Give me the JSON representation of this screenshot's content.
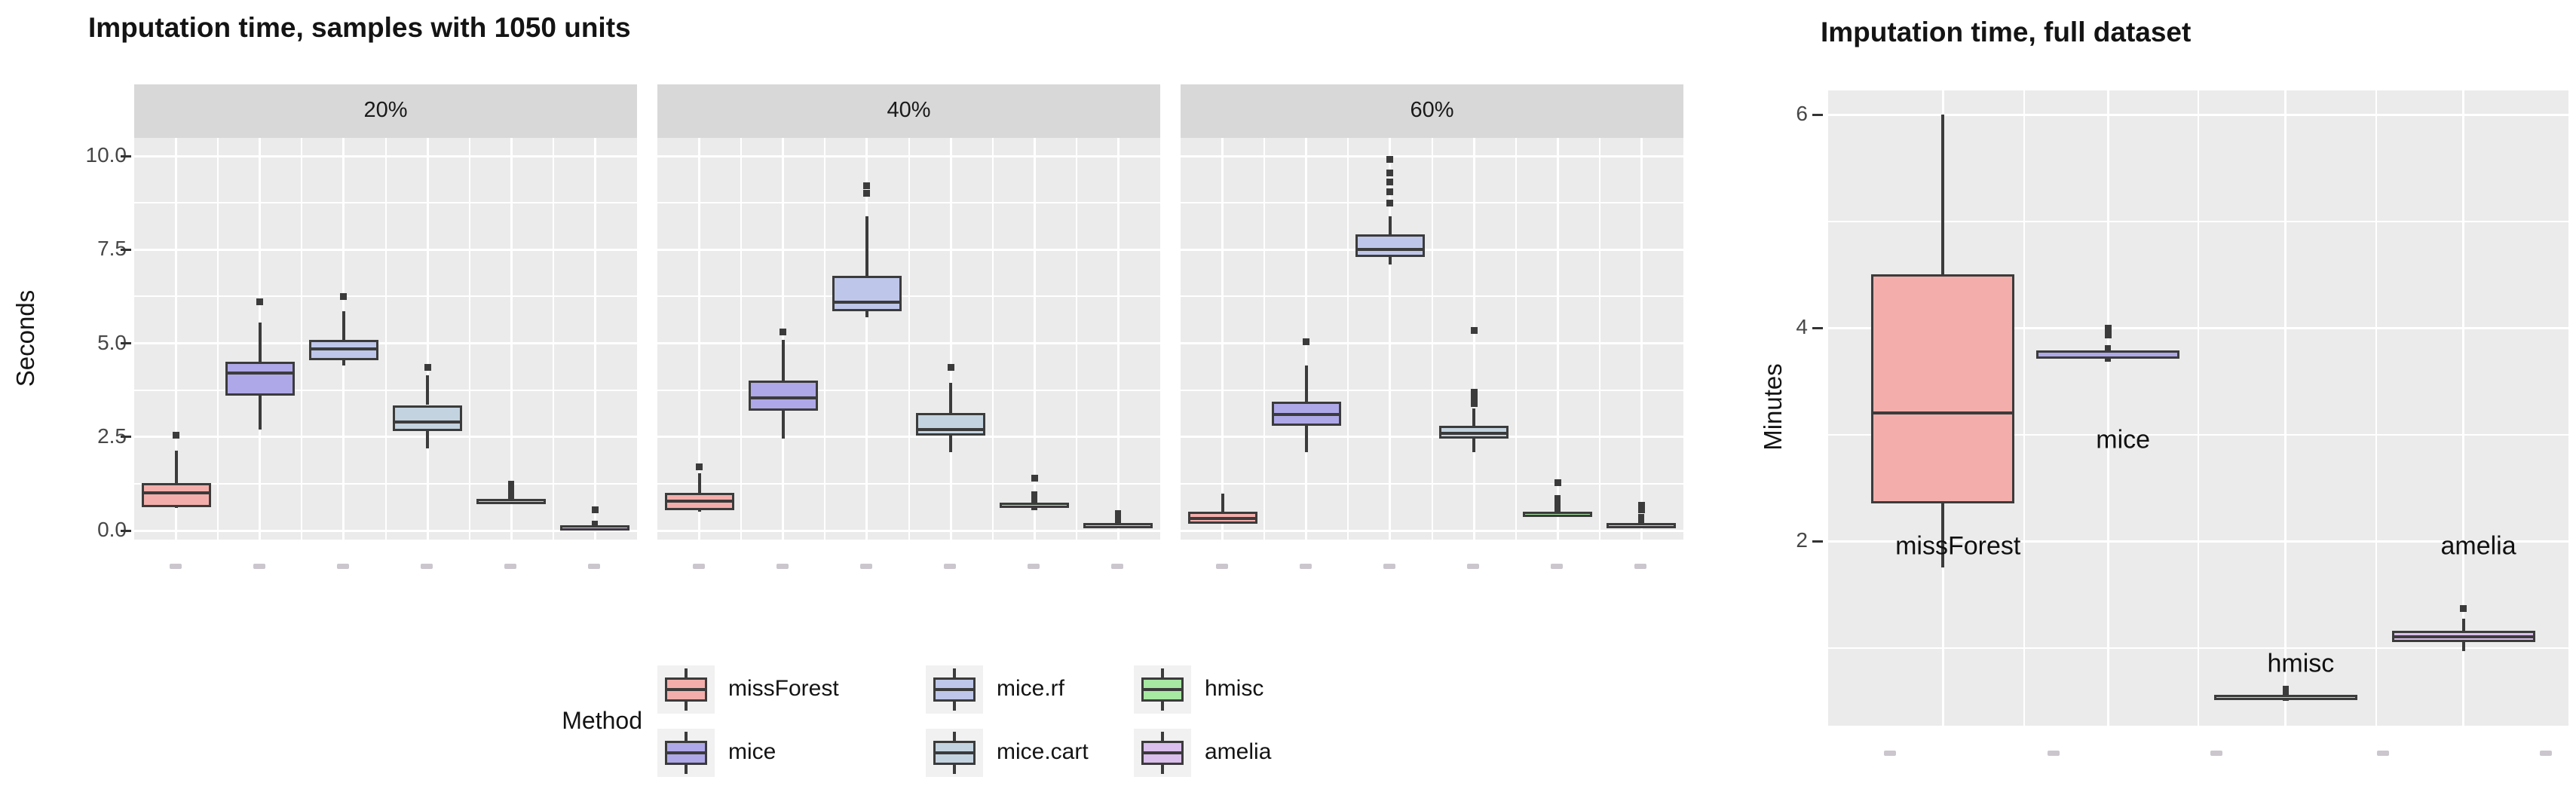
{
  "left_chart": {
    "title": "Imputation time, samples with 1050 units",
    "y_axis": {
      "label": "Seconds",
      "ticks": [
        "10.0",
        "7.5",
        "5.0",
        "2.5",
        "0.0"
      ],
      "tick_values": [
        10,
        7.5,
        5,
        2.5,
        0
      ]
    },
    "facet_labels": [
      "20%",
      "40%",
      "60%"
    ],
    "x_tick_labels_illegible": true
  },
  "right_chart": {
    "title": "Imputation time, full dataset",
    "y_axis": {
      "label": "Minutes",
      "ticks": [
        "6",
        "4",
        "2"
      ],
      "tick_values": [
        6,
        4,
        2
      ]
    },
    "x_tick_labels_illegible": true
  },
  "legend": {
    "title": "Method",
    "columns": [
      [
        {
          "label": "missForest",
          "color": "#F3AEAB"
        },
        {
          "label": "mice",
          "color": "#AEA8E8"
        }
      ],
      [
        {
          "label": "mice.rf",
          "color": "#BEC7E9"
        },
        {
          "label": "mice.cart",
          "color": "#C4D3E0"
        }
      ],
      [
        {
          "label": "hmisc",
          "color": "#A7E8A2"
        },
        {
          "label": "amelia",
          "color": "#DABEEC"
        }
      ]
    ]
  },
  "colors": {
    "missForest": "#F3AEAB",
    "mice": "#AEA8E8",
    "mice_rf": "#BEC7E9",
    "mice_cart": "#C4D3E0",
    "hmisc": "#A7E8A2",
    "amelia": "#DABEEC",
    "box_border": "#3B3B3B",
    "panel_background": "#EBEBEB",
    "strip_background": "#D8D8D8",
    "gridline": "#FFFFFF",
    "tick_text": "#474747",
    "title_text": "#141414"
  },
  "chart_data": [
    {
      "type": "boxplot",
      "title": "Imputation time, samples with 1050 units",
      "xlabel": "",
      "ylabel": "Seconds",
      "ylim": [
        0,
        10.4
      ],
      "yticks": [
        0,
        2.5,
        5,
        7.5,
        10
      ],
      "grid": true,
      "legend_position": "bottom",
      "facets": [
        "20%",
        "40%",
        "60%"
      ],
      "methods": [
        "missForest",
        "mice",
        "mice.rf",
        "mice.cart",
        "hmisc",
        "amelia"
      ],
      "series": [
        {
          "facet": "20%",
          "boxes": [
            {
              "method": "missForest",
              "whisker_low": 0.6,
              "q1": 0.63,
              "median": 1.0,
              "q3": 1.26,
              "whisker_high": 2.14,
              "outliers": [
                2.55
              ]
            },
            {
              "method": "mice",
              "whisker_low": 2.7,
              "q1": 3.6,
              "median": 4.2,
              "q3": 4.5,
              "whisker_high": 5.55,
              "outliers": [
                6.1
              ]
            },
            {
              "method": "mice.rf",
              "whisker_low": 4.4,
              "q1": 4.55,
              "median": 4.85,
              "q3": 5.1,
              "whisker_high": 5.85,
              "outliers": [
                6.25
              ]
            },
            {
              "method": "mice.cart",
              "whisker_low": 2.2,
              "q1": 2.65,
              "median": 2.9,
              "q3": 3.35,
              "whisker_high": 4.15,
              "outliers": [
                4.35
              ]
            },
            {
              "method": "hmisc",
              "whisker_low": 0.72,
              "q1": 0.74,
              "median": 0.78,
              "q3": 0.84,
              "whisker_high": 1.33,
              "outliers": []
            },
            {
              "method": "amelia",
              "whisker_low": 0.07,
              "q1": 0.09,
              "median": 0.12,
              "q3": 0.15,
              "whisker_high": 0.27,
              "outliers": [
                0.55
              ]
            }
          ]
        },
        {
          "facet": "40%",
          "boxes": [
            {
              "method": "missForest",
              "whisker_low": 0.5,
              "q1": 0.55,
              "median": 0.78,
              "q3": 1.0,
              "whisker_high": 1.53,
              "outliers": [
                1.71
              ]
            },
            {
              "method": "mice",
              "whisker_low": 2.45,
              "q1": 3.2,
              "median": 3.55,
              "q3": 4.0,
              "whisker_high": 5.1,
              "outliers": [
                5.3
              ]
            },
            {
              "method": "mice.rf",
              "whisker_low": 5.7,
              "q1": 5.85,
              "median": 6.1,
              "q3": 6.8,
              "whisker_high": 8.4,
              "outliers": [
                9.0,
                9.2
              ]
            },
            {
              "method": "mice.cart",
              "whisker_low": 2.1,
              "q1": 2.53,
              "median": 2.69,
              "q3": 3.14,
              "whisker_high": 3.95,
              "outliers": [
                4.35
              ]
            },
            {
              "method": "hmisc",
              "whisker_low": 0.55,
              "q1": 0.6,
              "median": 0.66,
              "q3": 0.75,
              "whisker_high": 1.05,
              "outliers": [
                1.4
              ]
            },
            {
              "method": "amelia",
              "whisker_low": 0.1,
              "q1": 0.12,
              "median": 0.15,
              "q3": 0.2,
              "whisker_high": 0.55,
              "outliers": []
            }
          ]
        },
        {
          "facet": "60%",
          "boxes": [
            {
              "method": "missForest",
              "whisker_low": 0.16,
              "q1": 0.18,
              "median": 0.33,
              "q3": 0.51,
              "whisker_high": 0.98,
              "outliers": []
            },
            {
              "method": "mice",
              "whisker_low": 2.1,
              "q1": 2.8,
              "median": 3.1,
              "q3": 3.45,
              "whisker_high": 4.4,
              "outliers": [
                5.05
              ]
            },
            {
              "method": "mice.rf",
              "whisker_low": 7.1,
              "q1": 7.3,
              "median": 7.5,
              "q3": 7.9,
              "whisker_high": 8.4,
              "outliers": [
                8.75,
                9.05,
                9.3,
                9.55,
                9.9
              ]
            },
            {
              "method": "mice.cart",
              "whisker_low": 2.1,
              "q1": 2.45,
              "median": 2.6,
              "q3": 2.8,
              "whisker_high": 3.25,
              "outliers": [
                3.4,
                3.55,
                3.7,
                5.35
              ]
            },
            {
              "method": "hmisc",
              "whisker_low": 0.42,
              "q1": 0.43,
              "median": 0.46,
              "q3": 0.5,
              "whisker_high": 0.95,
              "outliers": [
                1.27
              ]
            },
            {
              "method": "amelia",
              "whisker_low": 0.12,
              "q1": 0.14,
              "median": 0.17,
              "q3": 0.2,
              "whisker_high": 0.45,
              "outliers": [
                0.55,
                0.68
              ]
            }
          ]
        }
      ]
    },
    {
      "type": "boxplot",
      "title": "Imputation time, full dataset",
      "xlabel": "",
      "ylabel": "Minutes",
      "ylim": [
        0.27,
        6.23
      ],
      "yticks": [
        2,
        4,
        6
      ],
      "grid": true,
      "legend_position": "none",
      "categories": [
        "missForest",
        "mice",
        "hmisc",
        "amelia"
      ],
      "boxes": [
        {
          "method": "missForest",
          "color_key": "missForest",
          "whisker_low": 1.75,
          "q1": 2.35,
          "median": 3.2,
          "q3": 4.5,
          "whisker_high": 6.0,
          "outliers": []
        },
        {
          "method": "mice",
          "color_key": "mice",
          "whisker_low": 3.68,
          "q1": 3.71,
          "median": 3.75,
          "q3": 3.79,
          "whisker_high": 3.84,
          "outliers": [
            3.93,
            4.0
          ]
        },
        {
          "method": "hmisc",
          "color_key": "hmisc",
          "whisker_low": 0.5,
          "q1": 0.51,
          "median": 0.53,
          "q3": 0.56,
          "whisker_high": 0.64,
          "outliers": []
        },
        {
          "method": "amelia",
          "color_key": "amelia",
          "whisker_low": 0.97,
          "q1": 1.05,
          "median": 1.1,
          "q3": 1.16,
          "whisker_high": 1.27,
          "outliers": [
            1.37
          ]
        }
      ],
      "annotations": [
        {
          "text": "missForest",
          "category_index": 0,
          "y": 1.95
        },
        {
          "text": "mice",
          "category_index": 1,
          "y": 2.95
        },
        {
          "text": "hmisc",
          "category_index": 2,
          "y": 0.85
        },
        {
          "text": "amelia",
          "category_index": 3,
          "y": 1.95
        }
      ]
    }
  ]
}
